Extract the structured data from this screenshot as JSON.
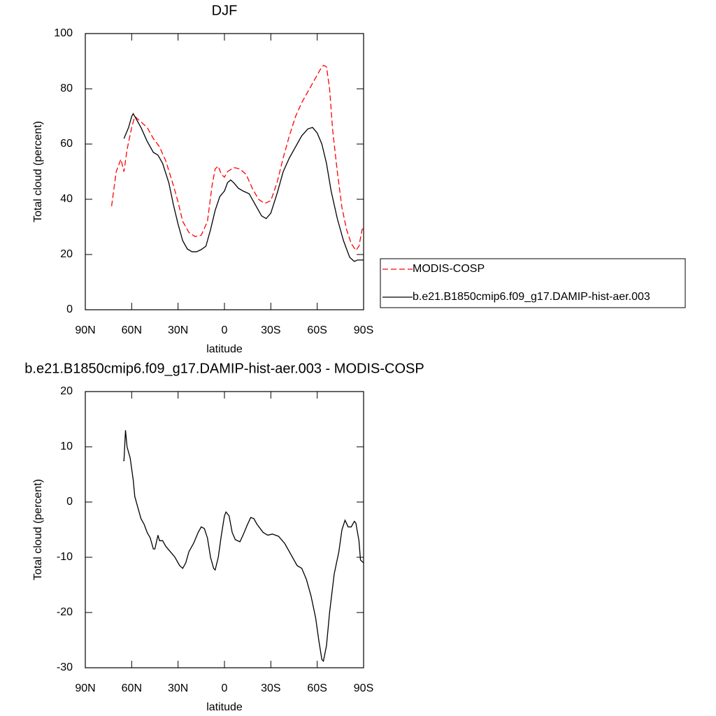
{
  "chart_data": [
    {
      "type": "line",
      "title": "DJF",
      "xlabel": "latitude",
      "ylabel": "Total cloud (percent)",
      "xlim": [
        90,
        -90
      ],
      "ylim": [
        0,
        100
      ],
      "xticks": [
        {
          "value": 90,
          "label": "90N"
        },
        {
          "value": 60,
          "label": "60N"
        },
        {
          "value": 30,
          "label": "30N"
        },
        0,
        {
          "value": -30,
          "label": "30S"
        },
        {
          "value": -60,
          "label": "60S"
        },
        {
          "value": -90,
          "label": "90S"
        }
      ],
      "yticks": [
        0,
        20,
        40,
        60,
        80,
        100
      ],
      "legend": "right",
      "series": [
        {
          "name": "MODIS-COSP",
          "color": "#ff0000",
          "line_style": "dashed",
          "x": [
            73,
            70,
            67,
            65,
            63,
            60,
            58,
            55,
            50,
            46,
            42,
            38,
            33,
            30,
            27,
            23,
            19,
            15,
            11,
            8,
            6,
            4,
            2,
            0,
            -2,
            -6,
            -10,
            -14,
            -18,
            -22,
            -26,
            -30,
            -34,
            -38,
            -42,
            -46,
            -50,
            -54,
            -58,
            -62,
            -64,
            -66,
            -68,
            -70,
            -73,
            -76,
            -79,
            -82,
            -85,
            -87,
            -89,
            -90
          ],
          "values": [
            37.5,
            50,
            54.5,
            50,
            58,
            66,
            70,
            68.5,
            66,
            62,
            59,
            54,
            45,
            39,
            32,
            28,
            26.5,
            27,
            32,
            45,
            51,
            52,
            49,
            48,
            50,
            51.5,
            51,
            49,
            44,
            40,
            38.5,
            39.5,
            46,
            55,
            63,
            70,
            75,
            79,
            83,
            87,
            88.5,
            88,
            80,
            65,
            50,
            37,
            29,
            24,
            21.5,
            23,
            29,
            29.5
          ]
        },
        {
          "name": "b.e21.B1850cmip6.f09_g17.DAMIP-hist-aer.003",
          "color": "#000000",
          "line_style": "solid",
          "x": [
            65,
            62,
            60,
            59,
            57,
            54,
            50,
            46,
            43,
            40,
            36,
            33,
            30,
            27,
            24,
            21,
            18,
            15,
            12,
            9,
            6,
            3,
            0,
            -2,
            -4,
            -6,
            -9,
            -12,
            -16,
            -20,
            -24,
            -27,
            -30,
            -34,
            -38,
            -42,
            -46,
            -50,
            -54,
            -57,
            -60,
            -63,
            -66,
            -69,
            -73,
            -77,
            -81,
            -84,
            -86,
            -88,
            -90
          ],
          "values": [
            62,
            66,
            70,
            71,
            69,
            66,
            61,
            57,
            56,
            53,
            46,
            38,
            31,
            25,
            22,
            21,
            21,
            21.8,
            23,
            29,
            36,
            41,
            43,
            46,
            47,
            46,
            44,
            43,
            42,
            38,
            34,
            33,
            35,
            42,
            50,
            55,
            59,
            63,
            65.5,
            66,
            64,
            60,
            53,
            43,
            33,
            25,
            19,
            17.5,
            18,
            18,
            18
          ]
        }
      ]
    },
    {
      "type": "line",
      "title": "b.e21.B1850cmip6.f09_g17.DAMIP-hist-aer.003 - MODIS-COSP",
      "xlabel": "latitude",
      "ylabel": "Total cloud (percent)",
      "xlim": [
        90,
        -90
      ],
      "ylim": [
        -30,
        20
      ],
      "xticks": [
        {
          "value": 90,
          "label": "90N"
        },
        {
          "value": 60,
          "label": "60N"
        },
        {
          "value": 30,
          "label": "30N"
        },
        0,
        {
          "value": -30,
          "label": "30S"
        },
        {
          "value": -60,
          "label": "60S"
        },
        {
          "value": -90,
          "label": "90S"
        }
      ],
      "yticks": [
        -30,
        -20,
        -10,
        0,
        10,
        20
      ],
      "series": [
        {
          "color": "#000000",
          "line_style": "solid",
          "x": [
            65.5,
            65,
            64,
            63,
            61,
            59,
            58,
            56,
            54,
            52,
            50,
            48,
            46,
            45,
            43,
            42,
            40,
            38,
            35,
            32,
            29,
            27,
            25,
            23,
            20,
            17,
            15,
            13,
            11,
            9,
            7,
            6,
            4,
            2,
            0,
            -1,
            -3,
            -5,
            -7,
            -10,
            -12,
            -15,
            -17,
            -19,
            -21,
            -25,
            -28,
            -31,
            -35,
            -39,
            -43,
            -47,
            -50,
            -53,
            -56,
            -59,
            -61,
            -63,
            -64,
            -66,
            -68,
            -71,
            -74,
            -76,
            -78,
            -80,
            -82,
            -84,
            -85,
            -87,
            -88,
            -90
          ],
          "values": [
            7.5,
            7.5,
            13,
            10,
            8,
            4,
            1,
            -1,
            -3,
            -4,
            -5.5,
            -6.5,
            -8.5,
            -8.5,
            -6,
            -7,
            -7,
            -8,
            -9,
            -10,
            -11.5,
            -12,
            -11,
            -9,
            -7.5,
            -5.5,
            -4.5,
            -4.8,
            -6.5,
            -10,
            -12,
            -12.3,
            -10,
            -6,
            -2.5,
            -1.8,
            -2.5,
            -5.5,
            -6.8,
            -7.2,
            -6,
            -4,
            -2.8,
            -3,
            -4,
            -5.5,
            -6,
            -5.8,
            -6.2,
            -7.5,
            -9.5,
            -11.5,
            -12,
            -14,
            -17,
            -21,
            -25,
            -28.5,
            -28.8,
            -26,
            -20,
            -13,
            -9,
            -5,
            -3.3,
            -4.5,
            -4.5,
            -3.5,
            -3.8,
            -7,
            -10.5,
            -11
          ]
        }
      ]
    }
  ]
}
